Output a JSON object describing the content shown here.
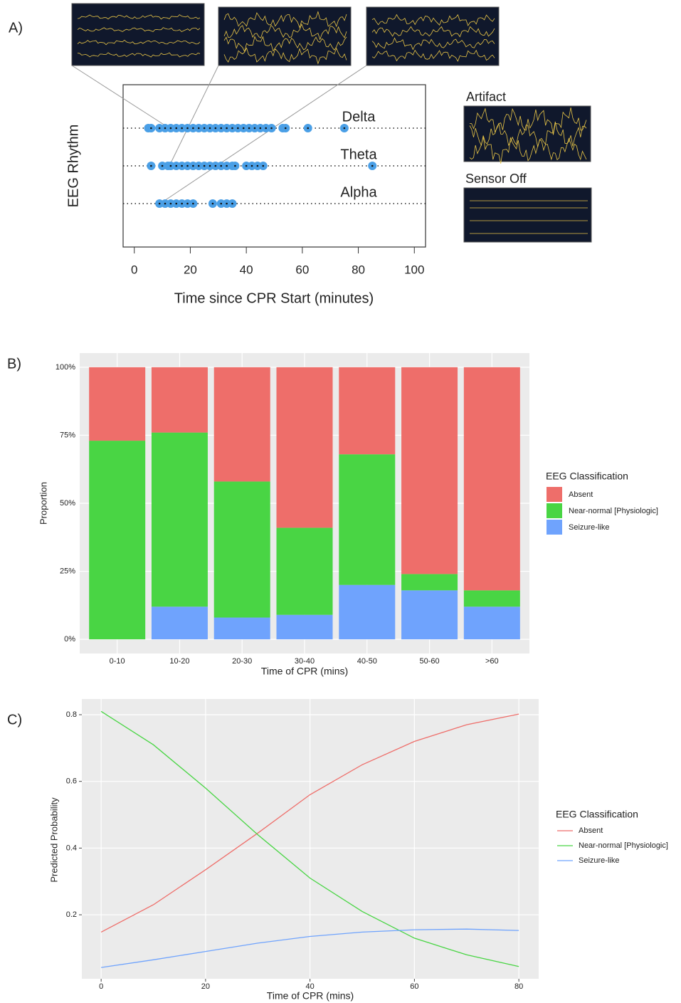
{
  "chart_data": [
    {
      "type": "dot",
      "panel_label": "A)",
      "x_label": "Time since CPR Start (minutes)",
      "y_label": "EEG Rhythm",
      "color": "#4a9fe6",
      "series": [
        {
          "name": "Delta",
          "values": [
            5,
            6,
            9,
            11,
            13,
            15,
            17,
            19,
            21,
            23,
            25,
            27,
            29,
            31,
            33,
            35,
            37,
            39,
            41,
            43,
            45,
            47,
            49,
            53,
            54,
            62,
            75
          ]
        },
        {
          "name": "Theta",
          "values": [
            6,
            10,
            12,
            13,
            15,
            17,
            19,
            21,
            23,
            25,
            27,
            29,
            31,
            33,
            35,
            36,
            40,
            42,
            44,
            46,
            85
          ]
        },
        {
          "name": "Alpha",
          "values": [
            9,
            11,
            13,
            15,
            17,
            19,
            21,
            28,
            31,
            33,
            35
          ]
        }
      ],
      "xlim": [
        -4,
        104
      ],
      "xticks": [
        0,
        20,
        40,
        60,
        80,
        100
      ],
      "inset_labels": [
        "Artifact",
        "Sensor Off"
      ]
    },
    {
      "type": "bar",
      "stacked": true,
      "panel_label": "B)",
      "x_label": "Time of CPR (mins)",
      "y_label": "Proportion",
      "legend_title": "EEG Classification",
      "categories": [
        "0-10",
        "10-20",
        "20-30",
        "30-40",
        "40-50",
        "50-60",
        ">60"
      ],
      "series": [
        {
          "name": "Absent",
          "color": "#ee6e6a",
          "values": [
            27,
            24,
            42,
            59,
            32,
            76,
            82
          ]
        },
        {
          "name": "Near-normal [Physiologic]",
          "color": "#49d544",
          "values": [
            73,
            64,
            50,
            32,
            48,
            6,
            6
          ]
        },
        {
          "name": "Seizure-like",
          "color": "#6fa3fd",
          "values": [
            0,
            12,
            8,
            9,
            20,
            18,
            12
          ]
        }
      ],
      "ylim": [
        -5.2,
        105.2
      ],
      "yticks": [
        {
          "value": 0,
          "label": "0%"
        },
        {
          "value": 25,
          "label": "25%"
        },
        {
          "value": 50,
          "label": "50%"
        },
        {
          "value": 75,
          "label": "75%"
        },
        {
          "value": 100,
          "label": "100%"
        }
      ],
      "grid": true
    },
    {
      "type": "line",
      "panel_label": "C)",
      "x_label": "Time of CPR (mins)",
      "y_label": "Predicted Probability",
      "legend_title": "EEG Classification",
      "x": [
        0,
        10,
        20,
        30,
        40,
        50,
        60,
        70,
        80
      ],
      "series": [
        {
          "name": "Absent",
          "color": "#ee6e6a",
          "values": [
            0.148,
            0.23,
            0.335,
            0.445,
            0.56,
            0.65,
            0.72,
            0.77,
            0.802
          ]
        },
        {
          "name": "Near-normal [Physiologic]",
          "color": "#49d544",
          "values": [
            0.81,
            0.71,
            0.58,
            0.44,
            0.31,
            0.21,
            0.13,
            0.08,
            0.045
          ]
        },
        {
          "name": "Seizure-like",
          "color": "#6fa3fd",
          "values": [
            0.042,
            0.065,
            0.09,
            0.115,
            0.135,
            0.148,
            0.155,
            0.157,
            0.153
          ]
        }
      ],
      "xlim": [
        -3.7,
        83.8
      ],
      "ylim": [
        0.008,
        0.847
      ],
      "xticks": [
        0,
        20,
        40,
        60,
        80
      ],
      "yticks": [
        0.2,
        0.4,
        0.6,
        0.8
      ],
      "grid": true
    }
  ]
}
